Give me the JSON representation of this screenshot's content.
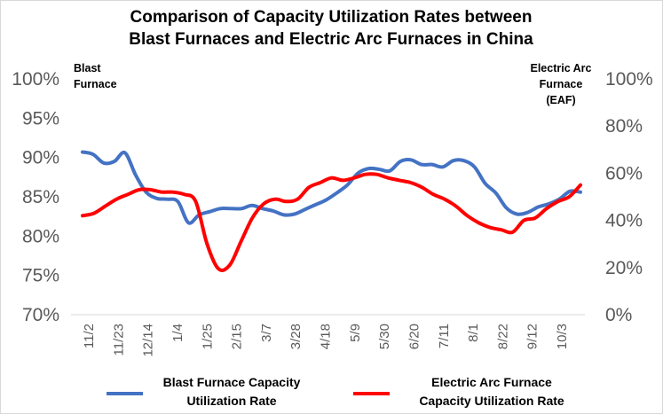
{
  "chart_data": {
    "type": "line",
    "title_lines": [
      "Comparison of Capacity Utilization Rates between",
      "Blast Furnaces and Electric Arc Furnaces in China"
    ],
    "left_axis_title_lines": [
      "Blast",
      "Furnace"
    ],
    "right_axis_title_lines": [
      "Electric Arc",
      "Furnace",
      "(EAF)"
    ],
    "x_tick_labels": [
      "11/2",
      "11/23",
      "12/14",
      "1/4",
      "1/25",
      "2/15",
      "3/7",
      "3/28",
      "4/18",
      "5/9",
      "5/30",
      "6/20",
      "7/11",
      "8/1",
      "8/22",
      "9/12",
      "10/3"
    ],
    "left_axis": {
      "min": 70,
      "max": 100,
      "step": 5,
      "tick_labels": [
        "70%",
        "75%",
        "80%",
        "85%",
        "90%",
        "95%",
        "100%"
      ]
    },
    "right_axis": {
      "min": 0,
      "max": 100,
      "step": 20,
      "tick_labels": [
        "0%",
        "20%",
        "40%",
        "60%",
        "80%",
        "100%"
      ]
    },
    "legend_position": "bottom",
    "grid": false,
    "series": [
      {
        "name_lines": [
          "Blast Furnace Capacity",
          "Utilization Rate"
        ],
        "axis": "left",
        "color": "#4472C4",
        "values": [
          90.7,
          90.4,
          89.3,
          89.5,
          90.6,
          87.8,
          85.6,
          84.8,
          84.7,
          84.4,
          81.7,
          82.7,
          83.1,
          83.5,
          83.5,
          83.5,
          83.9,
          83.5,
          83.2,
          82.7,
          82.8,
          83.4,
          84.0,
          84.6,
          85.5,
          86.5,
          88.0,
          88.6,
          88.5,
          88.3,
          89.5,
          89.7,
          89.1,
          89.1,
          88.8,
          89.6,
          89.6,
          88.8,
          86.7,
          85.5,
          83.6,
          82.8,
          83.0,
          83.7,
          84.1,
          84.7,
          85.7,
          85.6
        ]
      },
      {
        "name_lines": [
          "Electric Arc Furnace",
          "Capacity Utilization Rate"
        ],
        "axis": "right",
        "color": "#FF0000",
        "values": [
          42,
          43,
          46,
          49,
          51,
          53,
          53,
          52,
          52,
          51,
          48,
          30,
          19.5,
          21,
          31,
          41,
          47,
          49,
          48,
          49,
          54,
          56,
          58,
          57,
          58,
          59.5,
          59.5,
          58,
          57,
          56,
          54,
          51,
          49,
          46,
          42,
          39,
          37,
          36,
          35,
          40,
          41,
          45,
          48,
          50,
          55
        ]
      }
    ]
  }
}
